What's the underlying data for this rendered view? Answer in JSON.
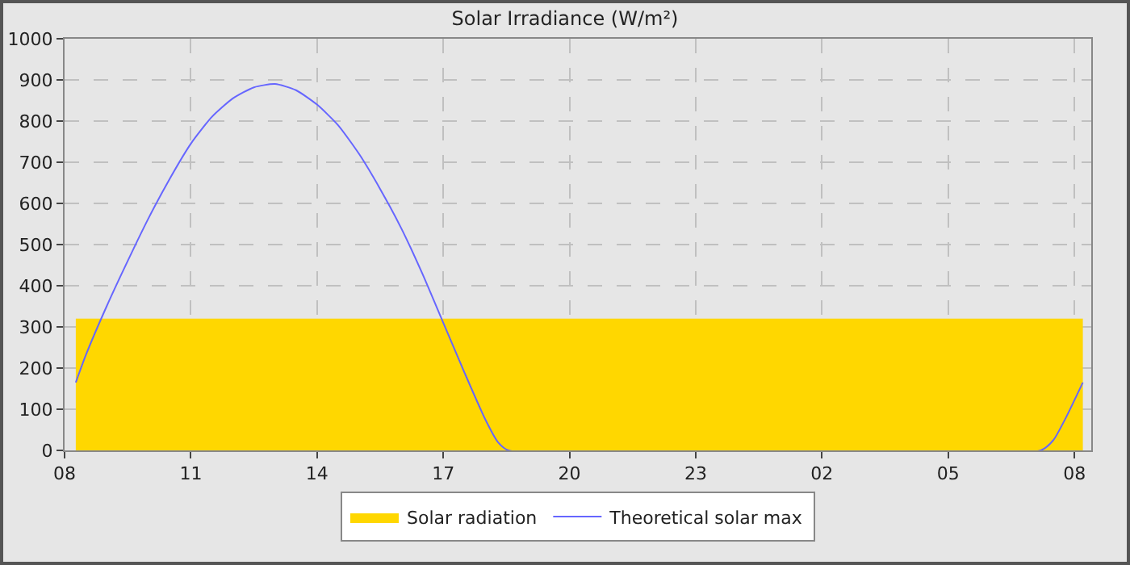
{
  "chart_data": {
    "type": "line",
    "title": "Solar Irradiance (W/m²)",
    "xlim": [
      "--06-01T08:00",
      "--06-02T08:24"
    ],
    "xticks": [
      {
        "value": "--06-01T08:00",
        "label": "08"
      },
      {
        "value": "--06-01T11:00",
        "label": "11"
      },
      {
        "value": "--06-01T14:00",
        "label": "14"
      },
      {
        "value": "--06-01T17:00",
        "label": "17"
      },
      {
        "value": "--06-01T20:00",
        "label": "20"
      },
      {
        "value": "--06-01T23:00",
        "label": "23"
      },
      {
        "value": "--06-02T02:00",
        "label": "02"
      },
      {
        "value": "--06-02T05:00",
        "label": "05"
      },
      {
        "value": "--06-02T08:00",
        "label": "08"
      }
    ],
    "ylim": [
      0,
      1000
    ],
    "yticks": [
      0,
      100,
      200,
      300,
      400,
      500,
      600,
      700,
      800,
      900,
      1000
    ],
    "grid": true,
    "legend": "bottom",
    "marker": "none",
    "series": [
      {
        "name": "Solar radiation",
        "type": "area",
        "color": "#ffd700",
        "x": [
          "--06-01T08:16",
          "--06-02T08:12"
        ],
        "values": [
          320,
          320
        ]
      },
      {
        "name": "Theoretical solar max",
        "color": "#6666ff",
        "line_style": "solid",
        "x": [
          "--06-01T08:16",
          "--06-01T08:30",
          "--06-01T09:00",
          "--06-01T09:30",
          "--06-01T10:00",
          "--06-01T10:30",
          "--06-01T11:00",
          "--06-01T11:30",
          "--06-01T12:00",
          "--06-01T12:30",
          "--06-01T13:00",
          "--06-01T13:30",
          "--06-01T14:00",
          "--06-01T14:30",
          "--06-01T15:00",
          "--06-01T15:30",
          "--06-01T16:00",
          "--06-01T16:30",
          "--06-01T17:00",
          "--06-01T17:30",
          "--06-01T18:00",
          "--06-01T18:18",
          "--06-01T18:33",
          "--06-02T07:12",
          "--06-02T07:30",
          "--06-02T07:48",
          "--06-02T08:12"
        ],
        "values": [
          165,
          230,
          350,
          460,
          565,
          660,
          745,
          810,
          855,
          882,
          890,
          875,
          840,
          790,
          720,
          635,
          540,
          430,
          310,
          190,
          75,
          20,
          0,
          0,
          25,
          80,
          165
        ]
      }
    ]
  }
}
